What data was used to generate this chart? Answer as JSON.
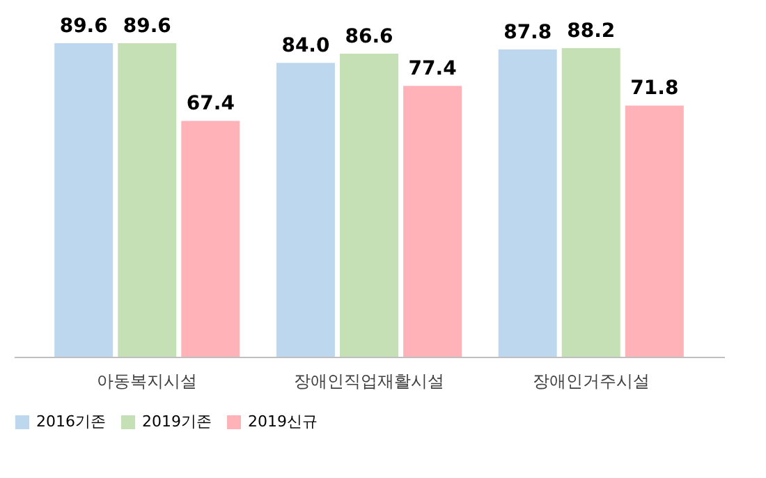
{
  "chart_data": {
    "type": "bar",
    "categories": [
      "아동복지시설",
      "장애인직업재활시설",
      "장애인거주시설"
    ],
    "series": [
      {
        "name": "2016기존",
        "color": "#bdd7ee",
        "values": [
          89.6,
          84.0,
          87.8
        ],
        "value_labels": [
          "89.6",
          "84.0",
          "87.8"
        ]
      },
      {
        "name": "2019기존",
        "color": "#c5e0b4",
        "values": [
          89.6,
          86.6,
          88.2
        ],
        "value_labels": [
          "89.6",
          "86.6",
          "88.2"
        ]
      },
      {
        "name": "2019신규",
        "color": "#ffb3b8",
        "values": [
          67.4,
          77.4,
          71.8
        ],
        "value_labels": [
          "67.4",
          "77.4",
          "71.8"
        ]
      }
    ],
    "tick_labels": "x",
    "legend": "bottom"
  }
}
